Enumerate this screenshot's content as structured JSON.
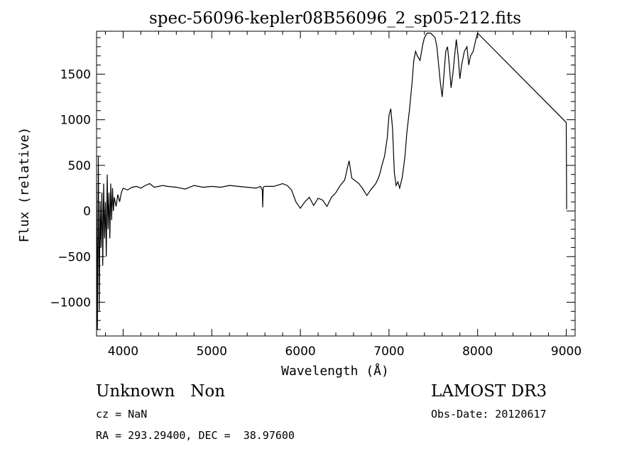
{
  "chart_data": {
    "type": "line",
    "title": "spec-56096-kepler08B56096_2_sp05-212.fits",
    "xlabel": "Wavelength (Å)",
    "ylabel": "Flux (relative)",
    "xlim": [
      3700,
      9100
    ],
    "ylim": [
      -1370,
      1970
    ],
    "x_ticks": [
      4000,
      5000,
      6000,
      7000,
      8000,
      9000
    ],
    "y_ticks": [
      -1000,
      -500,
      0,
      500,
      1000,
      1500
    ],
    "grid": false,
    "series": [
      {
        "x": [
          3700,
          3710,
          3720,
          3730,
          3740,
          3750,
          3760,
          3770,
          3780,
          3790,
          3800,
          3810,
          3820,
          3830,
          3840,
          3850,
          3860,
          3870,
          3880,
          3890,
          3900,
          3920,
          3940,
          3960,
          3980,
          4000,
          4050,
          4100,
          4150,
          4200,
          4250,
          4300,
          4350,
          4400,
          4450,
          4500,
          4600,
          4700,
          4800,
          4900,
          5000,
          5100,
          5200,
          5300,
          5400,
          5500,
          5550,
          5570,
          5575,
          5580,
          5600,
          5700,
          5800,
          5850,
          5900,
          5950,
          6000,
          6050,
          6100,
          6150,
          6200,
          6250,
          6300,
          6350,
          6400,
          6450,
          6500,
          6530,
          6550,
          6580,
          6620,
          6660,
          6700,
          6750,
          6800,
          6850,
          6880,
          6900,
          6920,
          6950,
          6980,
          7000,
          7020,
          7040,
          7060,
          7080,
          7100,
          7120,
          7150,
          7180,
          7200,
          7230,
          7260,
          7280,
          7300,
          7320,
          7350,
          7380,
          7400,
          7430,
          7470,
          7500,
          7520,
          7540,
          7560,
          7580,
          7600,
          7620,
          7640,
          7660,
          7680,
          7700,
          7720,
          7740,
          7760,
          7780,
          7800,
          7820,
          7850,
          7880,
          7900,
          7920,
          7950,
          7980,
          8000,
          9000,
          9005
        ],
        "y": [
          300,
          -1300,
          600,
          -1100,
          100,
          -400,
          200,
          -600,
          300,
          -300,
          100,
          -500,
          400,
          -200,
          200,
          -300,
          300,
          -100,
          250,
          0,
          150,
          50,
          180,
          100,
          200,
          250,
          230,
          260,
          270,
          250,
          280,
          300,
          260,
          270,
          280,
          270,
          260,
          240,
          280,
          260,
          270,
          260,
          280,
          270,
          260,
          250,
          270,
          230,
          40,
          260,
          270,
          270,
          300,
          280,
          230,
          100,
          30,
          100,
          150,
          60,
          140,
          120,
          50,
          150,
          200,
          280,
          340,
          470,
          550,
          360,
          330,
          300,
          250,
          170,
          240,
          300,
          360,
          420,
          500,
          600,
          800,
          1050,
          1120,
          900,
          420,
          280,
          320,
          250,
          370,
          600,
          850,
          1100,
          1400,
          1650,
          1750,
          1700,
          1650,
          1820,
          1900,
          1950,
          1950,
          1920,
          1900,
          1800,
          1600,
          1400,
          1250,
          1500,
          1750,
          1800,
          1600,
          1350,
          1500,
          1700,
          1880,
          1700,
          1450,
          1600,
          1750,
          1800,
          1600,
          1700,
          1750,
          1880,
          1950,
          970,
          20
        ]
      }
    ]
  },
  "info": {
    "class_text": "Unknown   Non",
    "survey": "LAMOST DR3",
    "cz": "cz = NaN",
    "obs_date": "Obs-Date: 20120617",
    "radec": "RA = 293.29400, DEC =  38.97600"
  },
  "colors": {
    "line": "#000000",
    "background": "#ffffff"
  }
}
